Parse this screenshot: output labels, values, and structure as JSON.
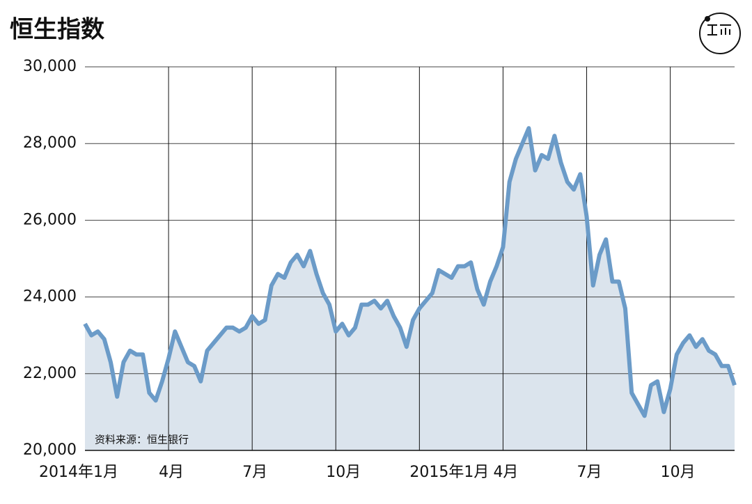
{
  "chart_data": {
    "type": "line",
    "title": "恒生指数",
    "source": "资料来源：恒生银行",
    "categories": [
      "2014年1月",
      null,
      null,
      null,
      null,
      null,
      null,
      null,
      null,
      null,
      null,
      null,
      null,
      "4月",
      null,
      null,
      null,
      null,
      null,
      null,
      null,
      null,
      null,
      null,
      null,
      null,
      "7月",
      null,
      null,
      null,
      null,
      null,
      null,
      null,
      null,
      null,
      null,
      null,
      null,
      "10月",
      null,
      null,
      null,
      null,
      null,
      null,
      null,
      null,
      null,
      null,
      null,
      null,
      "2015年1月",
      null,
      null,
      null,
      null,
      null,
      null,
      null,
      null,
      null,
      null,
      null,
      null,
      "4月",
      null,
      null,
      null,
      null,
      null,
      null,
      null,
      null,
      null,
      null,
      null,
      null,
      "7月",
      null,
      null,
      null,
      null,
      null,
      null,
      null,
      null,
      null,
      null,
      null,
      null,
      "10月",
      null,
      null,
      null,
      null,
      null,
      null,
      null,
      null,
      null,
      null
    ],
    "values": [
      23300,
      23000,
      23100,
      22900,
      22300,
      21400,
      22300,
      22600,
      22500,
      22500,
      21500,
      21300,
      21800,
      22400,
      23100,
      22700,
      22300,
      22200,
      21800,
      22600,
      22800,
      23000,
      23200,
      23200,
      23100,
      23200,
      23500,
      23300,
      23400,
      24300,
      24600,
      24500,
      24900,
      25100,
      24800,
      25200,
      24600,
      24100,
      23800,
      23100,
      23300,
      23000,
      23200,
      23800,
      23800,
      23900,
      23700,
      23900,
      23500,
      23200,
      22700,
      23400,
      23700,
      23900,
      24100,
      24700,
      24600,
      24500,
      24800,
      24800,
      24900,
      24200,
      23800,
      24400,
      24800,
      25300,
      27000,
      27600,
      28000,
      28400,
      27300,
      27700,
      27600,
      28200,
      27500,
      27000,
      26800,
      27200,
      26100,
      24300,
      25100,
      25500,
      24400,
      24400,
      23700,
      21500,
      21200,
      20900,
      21700,
      21800,
      21000,
      21600,
      22500,
      22800,
      23000,
      22700,
      22900,
      22600,
      22500,
      22200,
      22200,
      21700
    ],
    "color": "#6b9bc8",
    "fill": "#dbe4ed",
    "ylim": [
      20000,
      30000
    ],
    "yticks": [
      {
        "value": 20000,
        "label": "20,000"
      },
      {
        "value": 22000,
        "label": "22,000"
      },
      {
        "value": 24000,
        "label": "24,000"
      },
      {
        "value": 26000,
        "label": "26,000"
      },
      {
        "value": 28000,
        "label": "28,000"
      },
      {
        "value": 30000,
        "label": "30,000"
      }
    ],
    "grid": true
  }
}
